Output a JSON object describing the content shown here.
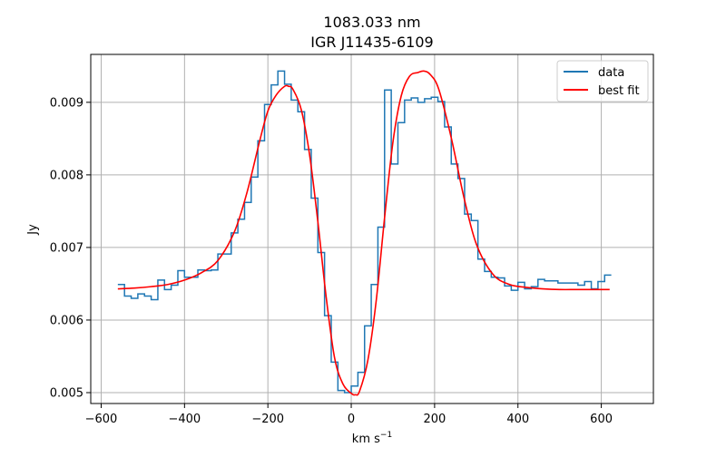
{
  "chart_data": {
    "type": "line",
    "title_line1": "1083.033 nm",
    "title_line2": "IGR J11435-6109",
    "xlabel_main": "km s",
    "xlabel_sup": "−1",
    "ylabel": "Jy",
    "xlim": [
      -625,
      725
    ],
    "ylim": [
      0.00485,
      0.00966
    ],
    "xticks": [
      {
        "value": -600,
        "label": "−600"
      },
      {
        "value": -400,
        "label": "−400"
      },
      {
        "value": -200,
        "label": "−200"
      },
      {
        "value": 0,
        "label": "0"
      },
      {
        "value": 200,
        "label": "200"
      },
      {
        "value": 400,
        "label": "400"
      },
      {
        "value": 600,
        "label": "600"
      }
    ],
    "yticks": [
      {
        "value": 0.005,
        "label": "0.005"
      },
      {
        "value": 0.006,
        "label": "0.006"
      },
      {
        "value": 0.007,
        "label": "0.007"
      },
      {
        "value": 0.008,
        "label": "0.008"
      },
      {
        "value": 0.009,
        "label": "0.009"
      }
    ],
    "grid": true,
    "legend_position": "top-right",
    "series": [
      {
        "name": "data",
        "style": "step",
        "color": "#1f77b4",
        "x": [
          -560,
          -544,
          -528,
          -512,
          -496,
          -480,
          -464,
          -448,
          -432,
          -416,
          -400,
          -384,
          -368,
          -352,
          -336,
          -320,
          -304,
          -288,
          -272,
          -256,
          -240,
          -224,
          -208,
          -192,
          -176,
          -160,
          -144,
          -128,
          -112,
          -96,
          -80,
          -64,
          -48,
          -32,
          -16,
          0,
          16,
          32,
          48,
          64,
          80,
          96,
          112,
          128,
          144,
          160,
          176,
          192,
          208,
          224,
          240,
          256,
          272,
          288,
          304,
          320,
          336,
          352,
          368,
          384,
          400,
          416,
          432,
          448,
          464,
          480,
          496,
          512,
          528,
          544,
          560,
          576,
          592,
          608,
          624
        ],
        "y": [
          0.00649,
          0.00633,
          0.0063,
          0.00636,
          0.00633,
          0.00628,
          0.00655,
          0.00642,
          0.00648,
          0.00668,
          0.00659,
          0.00659,
          0.00669,
          0.00668,
          0.00669,
          0.00691,
          0.00691,
          0.0072,
          0.00739,
          0.00762,
          0.00797,
          0.00847,
          0.00897,
          0.00924,
          0.00943,
          0.00925,
          0.00903,
          0.00887,
          0.00835,
          0.00768,
          0.00693,
          0.00606,
          0.00542,
          0.00503,
          0.005,
          0.00509,
          0.00528,
          0.00592,
          0.00649,
          0.00728,
          0.00917,
          0.00815,
          0.00872,
          0.00903,
          0.00906,
          0.009,
          0.00905,
          0.00907,
          0.00901,
          0.00866,
          0.00815,
          0.00795,
          0.00746,
          0.00737,
          0.00684,
          0.00667,
          0.00659,
          0.00658,
          0.00647,
          0.00641,
          0.00652,
          0.00643,
          0.00646,
          0.00656,
          0.00654,
          0.00654,
          0.00651,
          0.00651,
          0.00651,
          0.00648,
          0.00653,
          0.00643,
          0.00653,
          0.00662,
          0.00662
        ]
      },
      {
        "name": "best fit",
        "style": "line",
        "color": "#ff0000",
        "x": [
          -560,
          -520,
          -480,
          -440,
          -400,
          -360,
          -320,
          -280,
          -250,
          -220,
          -200,
          -180,
          -160,
          -150,
          -140,
          -120,
          -100,
          -80,
          -60,
          -40,
          -20,
          0,
          10,
          20,
          40,
          60,
          80,
          100,
          120,
          140,
          160,
          175,
          190,
          210,
          240,
          270,
          300,
          340,
          380,
          420,
          460,
          500,
          540,
          580,
          620
        ],
        "y": [
          0.00643,
          0.00644,
          0.00646,
          0.00649,
          0.00655,
          0.00665,
          0.00682,
          0.00722,
          0.00776,
          0.00846,
          0.00888,
          0.0091,
          0.00922,
          0.00922,
          0.00918,
          0.0089,
          0.00828,
          0.00735,
          0.00631,
          0.00548,
          0.00512,
          0.00499,
          0.00497,
          0.00502,
          0.00545,
          0.00627,
          0.00741,
          0.00845,
          0.00909,
          0.00936,
          0.00941,
          0.00943,
          0.00938,
          0.00918,
          0.00851,
          0.0077,
          0.00705,
          0.00663,
          0.00649,
          0.00645,
          0.00643,
          0.00642,
          0.00642,
          0.00642,
          0.00642
        ]
      }
    ]
  }
}
